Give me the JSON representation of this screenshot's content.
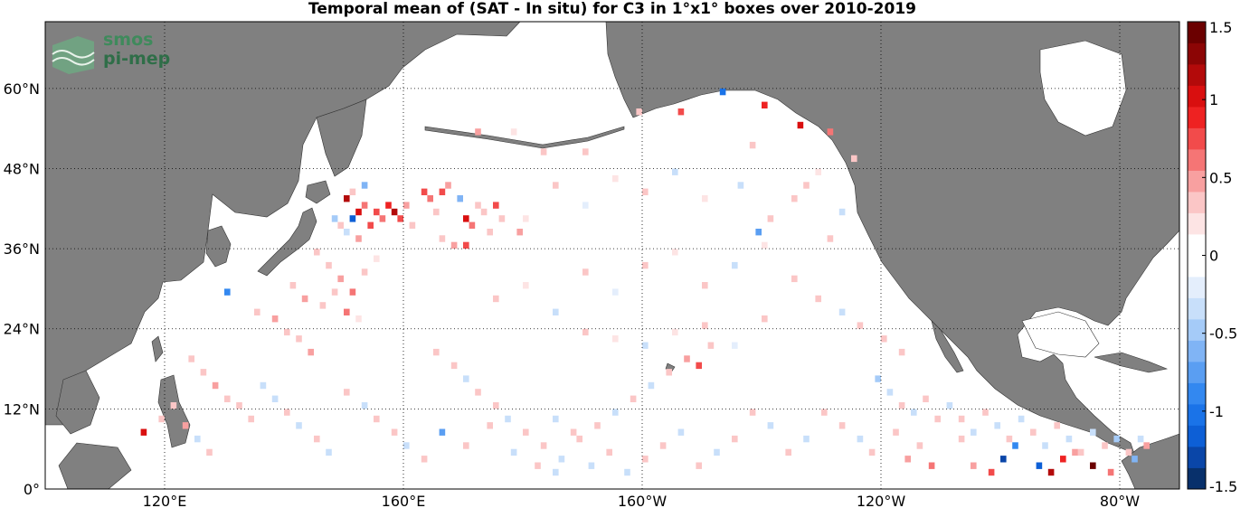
{
  "title": "Temporal mean of (SAT - In situ) for C3 in 1°x1° boxes over 2010-2019",
  "logo": {
    "line1": "smos",
    "line2": "pi-mep"
  },
  "map": {
    "lon_range": [
      100,
      290
    ],
    "lat_range": [
      0,
      70
    ],
    "land_color": "#808080",
    "ocean_color": "#ffffff",
    "grid": "dotted",
    "lat_ticks": [
      {
        "value": 0,
        "label": "0°"
      },
      {
        "value": 12,
        "label": "12°N"
      },
      {
        "value": 24,
        "label": "24°N"
      },
      {
        "value": 36,
        "label": "36°N"
      },
      {
        "value": 48,
        "label": "48°N"
      },
      {
        "value": 60,
        "label": "60°N"
      }
    ],
    "lon_ticks": [
      {
        "value": 120,
        "label": "120°E"
      },
      {
        "value": 160,
        "label": "160°E"
      },
      {
        "value": 200,
        "label": "160°W"
      },
      {
        "value": 240,
        "label": "120°W"
      },
      {
        "value": 280,
        "label": "80°W"
      }
    ]
  },
  "colorbar": {
    "min": -1.5,
    "max": 1.5,
    "ticks": [
      {
        "value": 1.5,
        "label": "1.5"
      },
      {
        "value": 1,
        "label": "1"
      },
      {
        "value": 0.5,
        "label": "0.5"
      },
      {
        "value": 0,
        "label": "0"
      },
      {
        "value": -0.5,
        "label": "-0.5"
      },
      {
        "value": -1,
        "label": "-1"
      },
      {
        "value": -1.5,
        "label": "-1.5"
      }
    ],
    "colors": [
      "#08306b",
      "#0a46a8",
      "#0d5fd6",
      "#1a73e8",
      "#3388f0",
      "#5a9ef2",
      "#80b4f5",
      "#a5cbf8",
      "#c8dffa",
      "#e4eefc",
      "#ffffff",
      "#ffffff",
      "#fde4e4",
      "#fbc6c6",
      "#f8a0a0",
      "#f57575",
      "#f24b4b",
      "#ee2222",
      "#d90f0f",
      "#b30a0a",
      "#8c0505",
      "#6b0000"
    ]
  },
  "chart_data": {
    "type": "heatmap",
    "title": "Temporal mean of (SAT - In situ) for C3 in 1°x1° boxes over 2010-2019",
    "xlabel": "",
    "ylabel": "",
    "xlim": [
      100,
      290
    ],
    "ylim": [
      0,
      70
    ],
    "value_range": [
      -1.5,
      1.5
    ],
    "grid": true,
    "cells": [
      [
        150,
        43,
        1.2
      ],
      [
        151,
        40,
        -1.2
      ],
      [
        152,
        41,
        1.0
      ],
      [
        153,
        42,
        0.6
      ],
      [
        154,
        39,
        0.7
      ],
      [
        155,
        41,
        0.8
      ],
      [
        156,
        40,
        0.6
      ],
      [
        157,
        42,
        0.9
      ],
      [
        158,
        41,
        1.1
      ],
      [
        159,
        40,
        0.7
      ],
      [
        160,
        42,
        0.5
      ],
      [
        161,
        39,
        0.4
      ],
      [
        148,
        40,
        -0.5
      ],
      [
        149,
        39,
        0.4
      ],
      [
        150,
        38,
        -0.4
      ],
      [
        152,
        37,
        0.5
      ],
      [
        153,
        45,
        -0.6
      ],
      [
        151,
        44,
        0.3
      ],
      [
        163,
        44,
        0.7
      ],
      [
        164,
        43,
        0.6
      ],
      [
        166,
        44,
        0.8
      ],
      [
        167,
        45,
        0.5
      ],
      [
        169,
        43,
        -0.6
      ],
      [
        172,
        42,
        0.4
      ],
      [
        165,
        41,
        0.3
      ],
      [
        170,
        40,
        1.0
      ],
      [
        171,
        39,
        0.6
      ],
      [
        173,
        41,
        0.3
      ],
      [
        176,
        40,
        0.4
      ],
      [
        175,
        42,
        0.8
      ],
      [
        166,
        37,
        0.4
      ],
      [
        168,
        36,
        0.5
      ],
      [
        170,
        36,
        0.8
      ],
      [
        174,
        38,
        0.3
      ],
      [
        179,
        38,
        0.5
      ],
      [
        180,
        40,
        0.2
      ],
      [
        145,
        35,
        0.3
      ],
      [
        147,
        33,
        0.4
      ],
      [
        149,
        31,
        0.5
      ],
      [
        151,
        29,
        0.6
      ],
      [
        153,
        32,
        0.3
      ],
      [
        155,
        34,
        0.2
      ],
      [
        141,
        30,
        0.3
      ],
      [
        143,
        28,
        0.5
      ],
      [
        146,
        27,
        0.4
      ],
      [
        148,
        29,
        0.3
      ],
      [
        150,
        26,
        0.6
      ],
      [
        152,
        25,
        0.2
      ],
      [
        130,
        29,
        -0.9
      ],
      [
        135,
        26,
        0.3
      ],
      [
        138,
        25,
        0.5
      ],
      [
        140,
        23,
        0.4
      ],
      [
        142,
        22,
        0.3
      ],
      [
        144,
        20,
        0.5
      ],
      [
        124,
        19,
        0.4
      ],
      [
        126,
        17,
        0.3
      ],
      [
        128,
        15,
        0.5
      ],
      [
        130,
        13,
        0.4
      ],
      [
        132,
        12,
        0.3
      ],
      [
        134,
        10,
        0.4
      ],
      [
        116,
        8,
        1.0
      ],
      [
        119,
        10,
        0.3
      ],
      [
        121,
        12,
        0.4
      ],
      [
        123,
        9,
        0.5
      ],
      [
        125,
        7,
        -0.3
      ],
      [
        127,
        5,
        0.4
      ],
      [
        136,
        15,
        -0.4
      ],
      [
        138,
        13,
        -0.3
      ],
      [
        140,
        11,
        0.3
      ],
      [
        142,
        9,
        -0.4
      ],
      [
        145,
        7,
        0.4
      ],
      [
        147,
        5,
        -0.3
      ],
      [
        150,
        14,
        0.3
      ],
      [
        153,
        12,
        -0.3
      ],
      [
        155,
        10,
        0.4
      ],
      [
        158,
        8,
        0.3
      ],
      [
        160,
        6,
        -0.3
      ],
      [
        163,
        4,
        0.4
      ],
      [
        165,
        20,
        0.3
      ],
      [
        168,
        18,
        0.4
      ],
      [
        170,
        16,
        -0.3
      ],
      [
        172,
        14,
        0.3
      ],
      [
        175,
        12,
        0.4
      ],
      [
        177,
        10,
        -0.3
      ],
      [
        180,
        8,
        0.3
      ],
      [
        183,
        6,
        0.4
      ],
      [
        186,
        4,
        -0.3
      ],
      [
        189,
        7,
        0.3
      ],
      [
        192,
        9,
        0.4
      ],
      [
        195,
        11,
        -0.3
      ],
      [
        198,
        13,
        0.3
      ],
      [
        201,
        15,
        -0.4
      ],
      [
        204,
        17,
        0.3
      ],
      [
        207,
        19,
        0.5
      ],
      [
        209,
        18,
        0.8
      ],
      [
        211,
        21,
        0.3
      ],
      [
        166,
        8,
        -0.8
      ],
      [
        170,
        6,
        0.4
      ],
      [
        174,
        9,
        0.3
      ],
      [
        178,
        5,
        -0.3
      ],
      [
        182,
        3,
        0.3
      ],
      [
        185,
        2,
        -0.4
      ],
      [
        213,
        59,
        -1.0
      ],
      [
        220,
        57,
        0.9
      ],
      [
        218,
        51,
        0.4
      ],
      [
        226,
        54,
        1.0
      ],
      [
        231,
        53,
        0.6
      ],
      [
        235,
        49,
        0.4
      ],
      [
        206,
        56,
        0.8
      ],
      [
        199,
        56,
        0.3
      ],
      [
        190,
        50,
        0.4
      ],
      [
        183,
        50,
        0.3
      ],
      [
        178,
        53,
        0.2
      ],
      [
        172,
        53,
        0.5
      ],
      [
        216,
        45,
        -0.4
      ],
      [
        219,
        38,
        -0.8
      ],
      [
        221,
        40,
        0.4
      ],
      [
        227,
        45,
        0.4
      ],
      [
        233,
        41,
        -0.3
      ],
      [
        231,
        37,
        0.3
      ],
      [
        225,
        31,
        0.4
      ],
      [
        229,
        28,
        0.3
      ],
      [
        233,
        26,
        -0.3
      ],
      [
        236,
        24,
        0.3
      ],
      [
        240,
        22,
        0.4
      ],
      [
        243,
        20,
        0.3
      ],
      [
        239,
        16,
        -0.5
      ],
      [
        241,
        14,
        -0.3
      ],
      [
        243,
        12,
        0.3
      ],
      [
        245,
        11,
        -0.4
      ],
      [
        247,
        13,
        0.3
      ],
      [
        249,
        10,
        0.4
      ],
      [
        251,
        12,
        -0.3
      ],
      [
        253,
        10,
        0.3
      ],
      [
        255,
        8,
        -0.4
      ],
      [
        257,
        11,
        0.3
      ],
      [
        259,
        9,
        -0.3
      ],
      [
        261,
        7,
        0.4
      ],
      [
        263,
        10,
        -0.3
      ],
      [
        265,
        8,
        0.3
      ],
      [
        267,
        6,
        -0.4
      ],
      [
        269,
        9,
        0.3
      ],
      [
        271,
        7,
        -0.3
      ],
      [
        273,
        5,
        0.4
      ],
      [
        275,
        8,
        -0.4
      ],
      [
        277,
        6,
        0.3
      ],
      [
        279,
        7,
        -0.5
      ],
      [
        281,
        5,
        0.4
      ],
      [
        283,
        7,
        -0.3
      ],
      [
        284,
        6,
        0.5
      ],
      [
        260,
        4,
        -1.3
      ],
      [
        266,
        3,
        -1.2
      ],
      [
        270,
        4,
        0.9
      ],
      [
        268,
        2,
        1.2
      ],
      [
        275,
        3,
        1.4
      ],
      [
        278,
        2,
        0.6
      ],
      [
        262,
        6,
        -0.9
      ],
      [
        272,
        5,
        0.5
      ],
      [
        282,
        4,
        -0.6
      ],
      [
        258,
        2,
        0.8
      ],
      [
        255,
        3,
        0.5
      ],
      [
        248,
        3,
        0.6
      ],
      [
        253,
        7,
        0.4
      ],
      [
        246,
        6,
        0.3
      ],
      [
        244,
        4,
        0.5
      ],
      [
        242,
        8,
        0.3
      ],
      [
        238,
        5,
        0.4
      ],
      [
        236,
        7,
        -0.3
      ],
      [
        233,
        9,
        0.3
      ],
      [
        230,
        11,
        0.4
      ],
      [
        227,
        7,
        -0.3
      ],
      [
        224,
        5,
        0.3
      ],
      [
        221,
        9,
        -0.3
      ],
      [
        218,
        11,
        0.3
      ],
      [
        215,
        7,
        0.4
      ],
      [
        212,
        5,
        -0.3
      ],
      [
        209,
        3,
        0.3
      ],
      [
        206,
        8,
        -0.4
      ],
      [
        203,
        6,
        0.3
      ],
      [
        200,
        4,
        0.4
      ],
      [
        197,
        2,
        -0.3
      ],
      [
        194,
        5,
        0.3
      ],
      [
        191,
        3,
        -0.4
      ],
      [
        188,
        8,
        0.3
      ],
      [
        185,
        10,
        -0.3
      ],
      [
        190,
        23,
        0.3
      ],
      [
        195,
        22,
        0.2
      ],
      [
        200,
        21,
        -0.3
      ],
      [
        205,
        23,
        0.2
      ],
      [
        210,
        24,
        0.3
      ],
      [
        215,
        21,
        -0.2
      ],
      [
        220,
        25,
        0.3
      ],
      [
        175,
        28,
        0.3
      ],
      [
        180,
        30,
        0.2
      ],
      [
        185,
        26,
        -0.3
      ],
      [
        190,
        32,
        0.3
      ],
      [
        195,
        29,
        -0.2
      ],
      [
        200,
        33,
        0.3
      ],
      [
        205,
        35,
        0.2
      ],
      [
        210,
        30,
        0.3
      ],
      [
        215,
        33,
        -0.3
      ],
      [
        220,
        36,
        0.2
      ],
      [
        185,
        45,
        0.3
      ],
      [
        190,
        42,
        -0.2
      ],
      [
        195,
        46,
        0.2
      ],
      [
        200,
        44,
        0.3
      ],
      [
        205,
        47,
        -0.3
      ],
      [
        210,
        43,
        0.2
      ],
      [
        225,
        43,
        0.3
      ],
      [
        229,
        47,
        0.2
      ]
    ]
  }
}
